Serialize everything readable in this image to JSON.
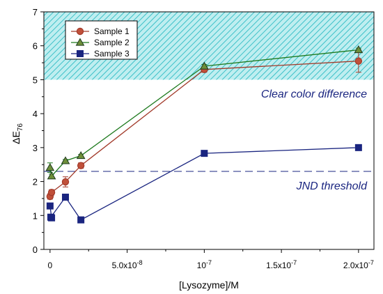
{
  "chart_data": {
    "type": "line",
    "title": "",
    "xlabel": "[Lysozyme]/M",
    "ylabel_main": "ΔE",
    "ylabel_sub": "76",
    "xlim": [
      -4e-09,
      2.1e-07
    ],
    "ylim": [
      0,
      7
    ],
    "x_ticks": [
      {
        "value": 0,
        "label": "0"
      },
      {
        "value": 5e-08,
        "label": "5.0x10",
        "exp": "-8"
      },
      {
        "value": 1e-07,
        "label": "10",
        "exp": "-7"
      },
      {
        "value": 1.5e-07,
        "label": "1.5x10",
        "exp": "-7"
      },
      {
        "value": 2e-07,
        "label": "2.0x10",
        "exp": "-7"
      }
    ],
    "y_ticks": [
      0,
      1,
      2,
      3,
      4,
      5,
      6,
      7
    ],
    "series": [
      {
        "name": "Sample 1",
        "color": "#a23a2a",
        "fill": "#c0503a",
        "marker": "circle",
        "x": [
          0,
          1e-09,
          1e-08,
          2e-08,
          1e-07,
          2e-07
        ],
        "y": [
          1.56,
          1.68,
          1.99,
          2.47,
          5.3,
          5.55
        ],
        "err": [
          0.08,
          0.08,
          0.15,
          0.08,
          0.08,
          0.33
        ]
      },
      {
        "name": "Sample 2",
        "color": "#1e7a1e",
        "fill": "#6e8f3a",
        "marker": "triangle",
        "x": [
          0,
          1e-09,
          1e-08,
          2e-08,
          1e-07,
          2e-07
        ],
        "y": [
          2.41,
          2.16,
          2.61,
          2.76,
          5.4,
          5.88
        ],
        "err": [
          0.14,
          0.06,
          0.04,
          0.04,
          0.05,
          0.05
        ]
      },
      {
        "name": "Sample 3",
        "color": "#1a2580",
        "fill": "#1a2580",
        "marker": "square",
        "x": [
          0,
          1e-09,
          5e-10,
          1e-08,
          2e-08,
          1e-07,
          2e-07
        ],
        "y": [
          1.28,
          0.93,
          0.95,
          1.54,
          0.87,
          2.83,
          3.0
        ],
        "err": [
          0,
          0,
          0,
          0,
          0,
          0,
          0
        ]
      }
    ],
    "annotations": {
      "clear_label": "Clear color difference",
      "clear_region": [
        5,
        7
      ],
      "jnd_label": "JND threshold",
      "jnd_value": 2.3
    },
    "legend_position": "top-left",
    "grid": false
  }
}
